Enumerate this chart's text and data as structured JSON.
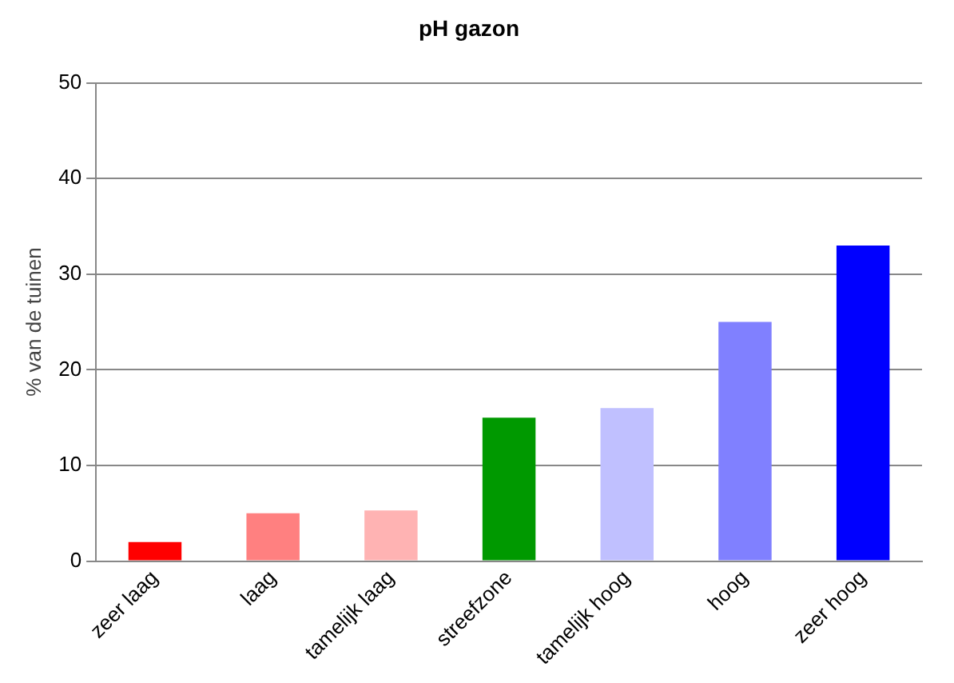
{
  "chart_data": {
    "type": "bar",
    "title": "pH gazon",
    "ylabel": "% van de tuinen",
    "categories": [
      "zeer laag",
      "laag",
      "tamelijk laag",
      "streefzone",
      "tamelijk hoog",
      "hoog",
      "zeer hoog"
    ],
    "values": [
      2,
      5,
      5.3,
      15,
      16,
      25,
      33
    ],
    "colors": [
      "#ff0000",
      "#ff8080",
      "#ffb3b3",
      "#009900",
      "#c0c0ff",
      "#8080ff",
      "#0000ff"
    ],
    "ylim": [
      0,
      50
    ],
    "yticks": [
      0,
      10,
      20,
      30,
      40,
      50
    ],
    "grid": "y",
    "legend": false
  }
}
